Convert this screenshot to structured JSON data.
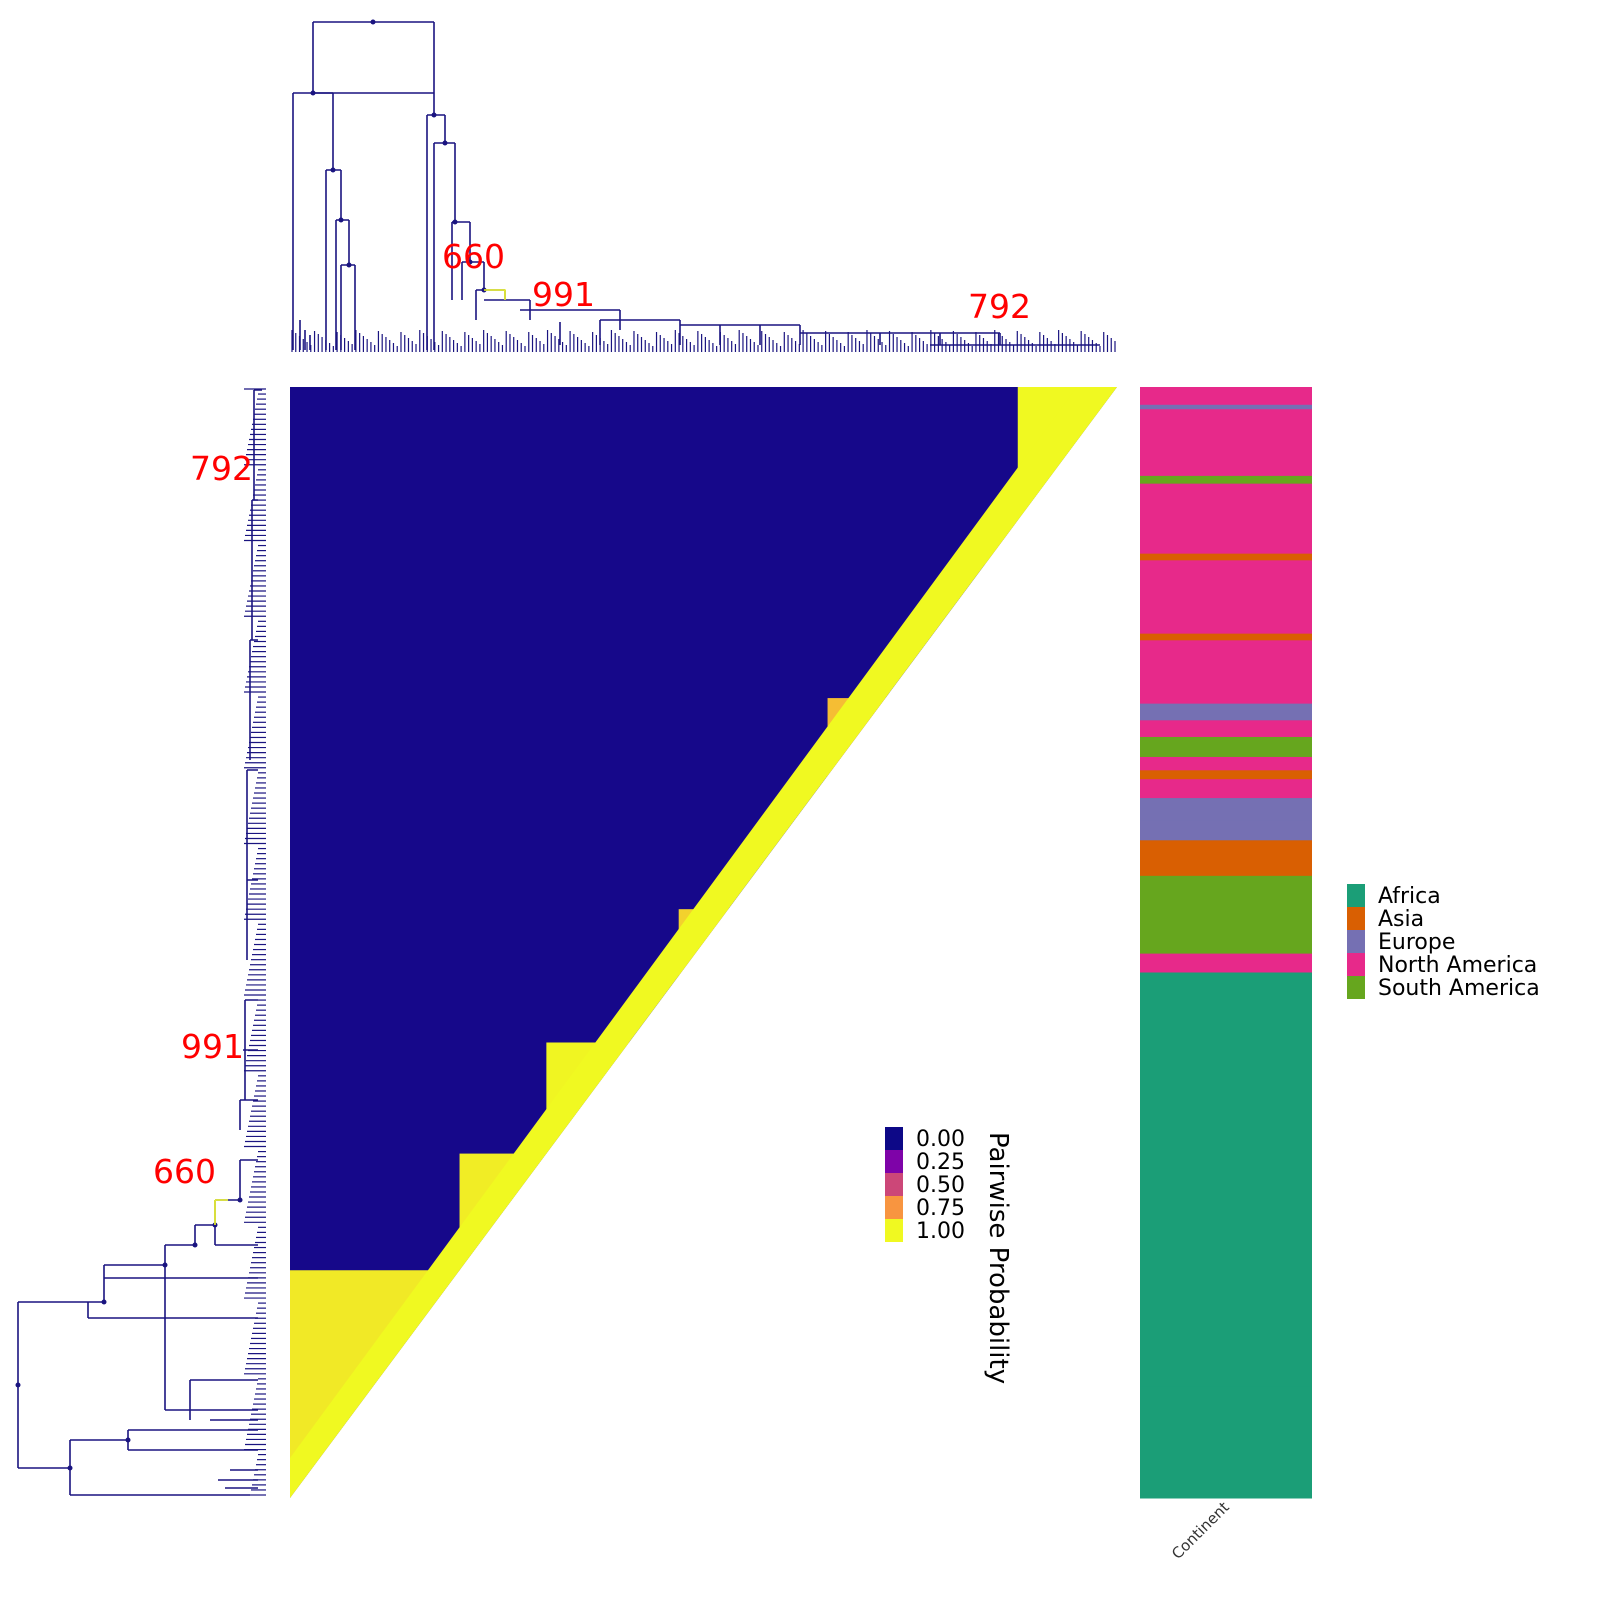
{
  "chart_data": {
    "type": "heatmap",
    "title": "",
    "legend_title": "Pairwise Probability",
    "color_scale": {
      "ticks": [
        "0.00",
        "0.25",
        "0.50",
        "0.75",
        "1.00"
      ],
      "values": [
        0,
        0.25,
        0.5,
        0.75,
        1
      ],
      "colors": [
        "#0d0887",
        "#7e03a8",
        "#cc4778",
        "#f89540",
        "#f0f921"
      ],
      "placement": "center-right of heatmap"
    },
    "matrix_shape": "upper-triangular",
    "order": "bottom-to-top along left tree, left-to-right along top tree",
    "blocks": [
      {
        "rows": [
          0,
          0.205
        ],
        "cols": [
          0,
          0.205
        ],
        "value": 0.96
      },
      {
        "rows": [
          0,
          0.205
        ],
        "cols": [
          0.205,
          1
        ],
        "value": 0.02
      },
      {
        "rows": [
          0.205,
          0.31
        ],
        "cols": [
          0.205,
          0.33
        ],
        "value": 0.97
      },
      {
        "rows": [
          0.205,
          0.31
        ],
        "cols": [
          0.33,
          1
        ],
        "value": 0.15
      },
      {
        "rows": [
          0.31,
          0.41
        ],
        "cols": [
          0.31,
          0.47
        ],
        "value": 0.99
      },
      {
        "rows": [
          0.31,
          0.41
        ],
        "cols": [
          0.47,
          0.56
        ],
        "value": 0.55
      },
      {
        "rows": [
          0.31,
          0.41
        ],
        "cols": [
          0.56,
          1
        ],
        "value": 0.2
      },
      {
        "rows": [
          0.41,
          0.53
        ],
        "cols": [
          0.47,
          0.65
        ],
        "value": 0.9
      },
      {
        "rows": [
          0.41,
          0.53
        ],
        "cols": [
          0.65,
          1
        ],
        "value": 0.3
      },
      {
        "rows": [
          0.53,
          0.72
        ],
        "cols": [
          0.65,
          0.84
        ],
        "value": 0.85
      },
      {
        "rows": [
          0.53,
          0.72
        ],
        "cols": [
          0.84,
          1
        ],
        "value": 0.1
      },
      {
        "rows": [
          0.72,
          0.88
        ],
        "cols": [
          0.84,
          0.88
        ],
        "value": 0.9
      },
      {
        "rows": [
          0.72,
          0.88
        ],
        "cols": [
          0.88,
          1
        ],
        "value": 0.0
      },
      {
        "rows": [
          0.88,
          1
        ],
        "cols": [
          0.88,
          1
        ],
        "value": 1.0
      }
    ],
    "node_labels": [
      "792",
      "991",
      "660"
    ],
    "annotation_track": {
      "label": "Continent",
      "categories": [
        "Africa",
        "Asia",
        "Europe",
        "North America",
        "South America"
      ],
      "colors": [
        "#1b9e77",
        "#d95f02",
        "#7570b3",
        "#e7298a",
        "#66a61e"
      ],
      "segments": [
        {
          "from": 0.0,
          "to": 0.016,
          "category": "North America"
        },
        {
          "from": 0.016,
          "to": 0.02,
          "category": "Europe"
        },
        {
          "from": 0.02,
          "to": 0.08,
          "category": "North America"
        },
        {
          "from": 0.08,
          "to": 0.087,
          "category": "South America"
        },
        {
          "from": 0.087,
          "to": 0.15,
          "category": "North America"
        },
        {
          "from": 0.15,
          "to": 0.156,
          "category": "Asia"
        },
        {
          "from": 0.156,
          "to": 0.222,
          "category": "North America"
        },
        {
          "from": 0.222,
          "to": 0.228,
          "category": "Asia"
        },
        {
          "from": 0.228,
          "to": 0.285,
          "category": "North America"
        },
        {
          "from": 0.285,
          "to": 0.3,
          "category": "Europe"
        },
        {
          "from": 0.3,
          "to": 0.315,
          "category": "North America"
        },
        {
          "from": 0.315,
          "to": 0.333,
          "category": "South America"
        },
        {
          "from": 0.333,
          "to": 0.345,
          "category": "North America"
        },
        {
          "from": 0.345,
          "to": 0.353,
          "category": "Asia"
        },
        {
          "from": 0.353,
          "to": 0.37,
          "category": "North America"
        },
        {
          "from": 0.37,
          "to": 0.39,
          "category": "Europe"
        },
        {
          "from": 0.39,
          "to": 0.408,
          "category": "Europe"
        },
        {
          "from": 0.408,
          "to": 0.44,
          "category": "Asia"
        },
        {
          "from": 0.44,
          "to": 0.51,
          "category": "South America"
        },
        {
          "from": 0.51,
          "to": 0.527,
          "category": "North America"
        },
        {
          "from": 0.527,
          "to": 0.9,
          "category": "Africa"
        },
        {
          "from": 0.9,
          "to": 1.0,
          "category": "Africa"
        }
      ]
    },
    "legend": {
      "placement": "right",
      "entries": [
        "Africa",
        "Asia",
        "Europe",
        "North America",
        "South America"
      ]
    }
  }
}
